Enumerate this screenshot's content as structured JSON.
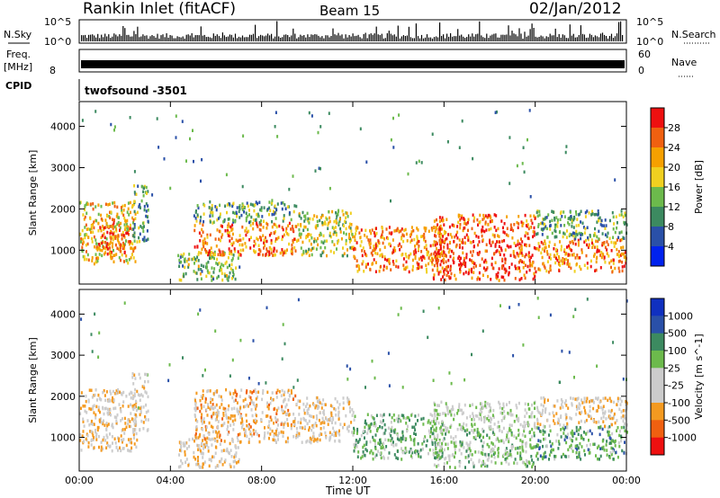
{
  "header": {
    "station": "Rankin Inlet (fitACF)",
    "beam": "Beam 15",
    "date": "02/Jan/2012"
  },
  "strip_panels": {
    "nsky_label": "N.Sky",
    "nsky_ticks": [
      "10^5",
      "10^0"
    ],
    "nsearch_label": "N.Search",
    "freq_label_line1": "Freq.",
    "freq_label_line2": "[MHz]",
    "freq_ticks": [
      "8"
    ],
    "nave_label": "Nave",
    "nave_ticks": [
      "60",
      "0"
    ],
    "cpid_label": "CPID",
    "cpid_value": "twofsound -3501"
  },
  "colors": {
    "power": [
      "#0022ee",
      "#2a50a8",
      "#3c8a60",
      "#6cba4c",
      "#f0d020",
      "#f6a000",
      "#f06010",
      "#ee1010"
    ],
    "velocity": [
      "#ee1010",
      "#f06010",
      "#f49a20",
      "#cccccc",
      "#cccccc",
      "#6cba4c",
      "#3c8a60",
      "#2a50a8",
      "#1030c0"
    ]
  },
  "chart_data": [
    {
      "type": "heatmap",
      "name": "power-panel",
      "ylabel": "Slant Range [km]",
      "xlabel": "",
      "x_ticks": [
        "00:00",
        "04:00",
        "08:00",
        "12:00",
        "16:00",
        "20:00",
        "00:00"
      ],
      "xlim_hours": [
        0,
        24
      ],
      "ylim": [
        180,
        4600
      ],
      "y_ticks": [
        1000,
        2000,
        3000,
        4000
      ],
      "colorbar": {
        "label": "Power [dB]",
        "ticks": [
          "4",
          "8",
          "12",
          "16",
          "20",
          "24",
          "28"
        ],
        "range": [
          0,
          32
        ]
      },
      "scatter_regions": [
        {
          "t0": 0.0,
          "t1": 2.5,
          "r0": 700,
          "r1": 2200,
          "value": 20
        },
        {
          "t0": 0.8,
          "t1": 2.2,
          "r0": 900,
          "r1": 1700,
          "value": 26
        },
        {
          "t0": 2.3,
          "t1": 3.0,
          "r0": 1200,
          "r1": 2600,
          "value": 12
        },
        {
          "t0": 4.3,
          "t1": 7.0,
          "r0": 300,
          "r1": 1000,
          "value": 14
        },
        {
          "t0": 5.0,
          "t1": 9.5,
          "r0": 900,
          "r1": 1700,
          "value": 24
        },
        {
          "t0": 5.0,
          "t1": 9.5,
          "r0": 1700,
          "r1": 2200,
          "value": 12
        },
        {
          "t0": 9.5,
          "t1": 12.0,
          "r0": 900,
          "r1": 2000,
          "value": 16
        },
        {
          "t0": 12.0,
          "t1": 16.0,
          "r0": 500,
          "r1": 1600,
          "value": 24
        },
        {
          "t0": 15.5,
          "t1": 20.0,
          "r0": 300,
          "r1": 1200,
          "value": 28
        },
        {
          "t0": 15.5,
          "t1": 20.0,
          "r0": 1200,
          "r1": 1900,
          "value": 26
        },
        {
          "t0": 20.0,
          "t1": 24.0,
          "r0": 500,
          "r1": 1300,
          "value": 24
        },
        {
          "t0": 20.0,
          "t1": 24.0,
          "r0": 1300,
          "r1": 2000,
          "value": 12
        }
      ]
    },
    {
      "type": "heatmap",
      "name": "velocity-panel",
      "ylabel": "Slant Range [km]",
      "xlabel": "Time UT",
      "x_ticks": [
        "00:00",
        "04:00",
        "08:00",
        "12:00",
        "16:00",
        "20:00",
        "00:00"
      ],
      "xlim_hours": [
        0,
        24
      ],
      "ylim": [
        180,
        4600
      ],
      "y_ticks": [
        1000,
        2000,
        3000,
        4000
      ],
      "colorbar": {
        "label": "Velocity [m s^-1]",
        "ticks": [
          "1000",
          "500",
          "100",
          "25",
          "-25",
          "-100",
          "-500",
          "-1000"
        ],
        "range": [
          -1200,
          1200
        ]
      },
      "scatter_regions": [
        {
          "t0": 0.0,
          "t1": 2.5,
          "r0": 700,
          "r1": 2200,
          "value": 300
        },
        {
          "t0": 2.3,
          "t1": 3.0,
          "r0": 1200,
          "r1": 2600,
          "value": 200
        },
        {
          "t0": 4.3,
          "t1": 7.0,
          "r0": 300,
          "r1": 1000,
          "value": 300
        },
        {
          "t0": 5.0,
          "t1": 9.5,
          "r0": 900,
          "r1": 2200,
          "value": 400
        },
        {
          "t0": 9.5,
          "t1": 12.0,
          "r0": 900,
          "r1": 2000,
          "value": 250
        },
        {
          "t0": 12.0,
          "t1": 16.0,
          "r0": 500,
          "r1": 1600,
          "value": -300
        },
        {
          "t0": 15.5,
          "t1": 20.0,
          "r0": 300,
          "r1": 1200,
          "value": -150
        },
        {
          "t0": 15.5,
          "t1": 20.0,
          "r0": 1200,
          "r1": 1900,
          "value": 0
        },
        {
          "t0": 20.0,
          "t1": 24.0,
          "r0": 500,
          "r1": 1300,
          "value": -400
        },
        {
          "t0": 20.0,
          "t1": 24.0,
          "r0": 1300,
          "r1": 2000,
          "value": 300
        }
      ]
    }
  ]
}
